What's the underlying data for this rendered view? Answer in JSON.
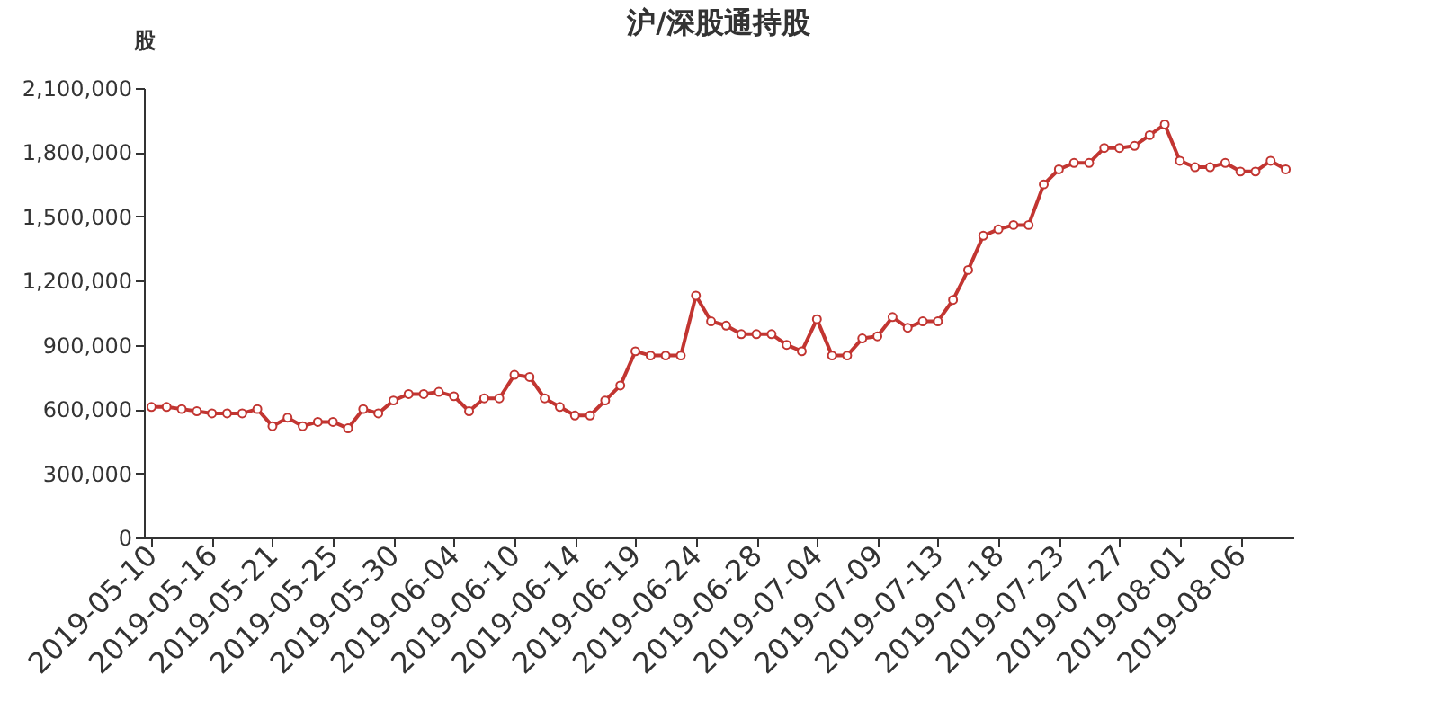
{
  "chart_data": {
    "type": "line",
    "title": "沪/深股通持股",
    "ylabel": "股",
    "categories": [
      "2019-05-10",
      null,
      null,
      null,
      "2019-05-16",
      null,
      null,
      null,
      "2019-05-21",
      null,
      null,
      null,
      "2019-05-25",
      null,
      null,
      null,
      "2019-05-30",
      null,
      null,
      null,
      "2019-06-04",
      null,
      null,
      null,
      "2019-06-10",
      null,
      null,
      null,
      "2019-06-14",
      null,
      null,
      null,
      "2019-06-19",
      null,
      null,
      null,
      "2019-06-24",
      null,
      null,
      null,
      "2019-06-28",
      null,
      null,
      null,
      "2019-07-04",
      null,
      null,
      null,
      "2019-07-09",
      null,
      null,
      null,
      "2019-07-13",
      null,
      null,
      null,
      "2019-07-18",
      null,
      null,
      null,
      "2019-07-23",
      null,
      null,
      null,
      "2019-07-27",
      null,
      null,
      null,
      "2019-08-01",
      null,
      null,
      null,
      "2019-08-06",
      null,
      null,
      null
    ],
    "series": [
      {
        "color": "#c23531",
        "values": [
          610000,
          610000,
          600000,
          590000,
          580000,
          580000,
          580000,
          600000,
          520000,
          560000,
          520000,
          540000,
          540000,
          510000,
          600000,
          580000,
          640000,
          670000,
          670000,
          680000,
          660000,
          590000,
          650000,
          650000,
          760000,
          750000,
          650000,
          610000,
          570000,
          570000,
          640000,
          710000,
          870000,
          850000,
          850000,
          850000,
          1130000,
          1010000,
          990000,
          950000,
          950000,
          950000,
          900000,
          870000,
          1020000,
          850000,
          850000,
          930000,
          940000,
          1030000,
          980000,
          1010000,
          1010000,
          1110000,
          1250000,
          1410000,
          1440000,
          1460000,
          1460000,
          1650000,
          1720000,
          1750000,
          1750000,
          1820000,
          1820000,
          1830000,
          1880000,
          1930000,
          1760000,
          1730000,
          1730000,
          1750000,
          1710000,
          1710000,
          1760000,
          1720000
        ]
      }
    ],
    "ylim": [
      0,
      2100000
    ],
    "yticks": [
      0,
      {
        "value": 300000,
        "label": "300,000"
      },
      {
        "value": 600000,
        "label": "600,000"
      },
      {
        "value": 900000,
        "label": "900,000"
      },
      {
        "value": 1200000,
        "label": "1,200,000"
      },
      {
        "value": 1500000,
        "label": "1,500,000"
      },
      {
        "value": 1800000,
        "label": "1,800,000"
      },
      {
        "value": 2100000,
        "label": "2,100,000"
      }
    ],
    "marker": "circle"
  }
}
